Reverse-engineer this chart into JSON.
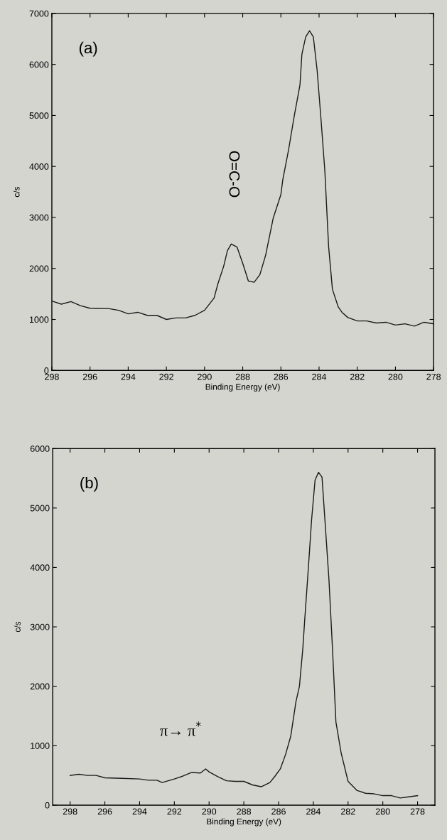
{
  "chart_data": [
    {
      "type": "line",
      "xlabel": "Binding Energy (eV)",
      "ylabel": "c/s",
      "xlim": [
        298,
        278
      ],
      "ylim": [
        0,
        7000
      ],
      "xticks": [
        298,
        296,
        294,
        292,
        290,
        288,
        286,
        284,
        282,
        280,
        278
      ],
      "yticks": [
        0,
        1000,
        2000,
        3000,
        4000,
        5000,
        6000,
        7000
      ],
      "annotations": [
        "(a)",
        "O=C-O"
      ],
      "series": [
        {
          "color": "#1a1a1a",
          "x": [
            298,
            297.5,
            297,
            296.5,
            296,
            295,
            294.5,
            294,
            293.5,
            293,
            292.5,
            292,
            291.5,
            291,
            290.5,
            290,
            289.5,
            289.3,
            289,
            288.8,
            288.6,
            288.3,
            288,
            287.7,
            287.4,
            287.1,
            286.8,
            286.4,
            286,
            285.9,
            285.6,
            285.3,
            285,
            284.9,
            284.7,
            284.5,
            284.3,
            284.1,
            283.9,
            283.7,
            283.5,
            283.3,
            283,
            282.8,
            282.5,
            282,
            281.5,
            281,
            280.5,
            280,
            279.5,
            279,
            278.5,
            278
          ],
          "values": [
            1360,
            1300,
            1350,
            1270,
            1220,
            1210,
            1180,
            1110,
            1140,
            1080,
            1080,
            1000,
            1030,
            1030,
            1080,
            1180,
            1420,
            1700,
            2040,
            2350,
            2480,
            2420,
            2100,
            1750,
            1730,
            1880,
            2260,
            2990,
            3450,
            3740,
            4320,
            4990,
            5600,
            6200,
            6540,
            6660,
            6540,
            5880,
            4930,
            3930,
            2430,
            1590,
            1250,
            1140,
            1040,
            970,
            970,
            930,
            945,
            890,
            915,
            870,
            945,
            915
          ]
        }
      ]
    },
    {
      "type": "line",
      "xlabel": "Binding Energy (eV)",
      "ylabel": "c/s",
      "xlim": [
        299,
        277
      ],
      "ylim": [
        0,
        6000
      ],
      "xticks": [
        298,
        296,
        294,
        292,
        290,
        288,
        286,
        284,
        282,
        280,
        278
      ],
      "yticks": [
        0,
        1000,
        2000,
        3000,
        4000,
        5000,
        6000
      ],
      "annotations": [
        "(b)",
        "π→ π$^{*}$"
      ],
      "series": [
        {
          "color": "#1a1a1a",
          "x": [
            298,
            297.5,
            297,
            296.5,
            296,
            295,
            294,
            293.5,
            293,
            292.7,
            292,
            291.5,
            291,
            290.5,
            290.2,
            290,
            289.5,
            289,
            288.5,
            288,
            287.5,
            287,
            286.5,
            286.2,
            285.9,
            285.6,
            285.3,
            285,
            284.8,
            284.6,
            284.5,
            284.3,
            284.1,
            283.9,
            283.7,
            283.5,
            283.3,
            283.1,
            282.9,
            282.7,
            282.4,
            282,
            281.5,
            281,
            280.5,
            280,
            279.5,
            279,
            278.5,
            278
          ],
          "values": [
            500,
            520,
            500,
            500,
            460,
            450,
            440,
            420,
            420,
            380,
            440,
            490,
            550,
            540,
            610,
            560,
            480,
            410,
            400,
            400,
            340,
            310,
            380,
            490,
            610,
            850,
            1160,
            1740,
            2000,
            2650,
            3100,
            3930,
            4800,
            5470,
            5600,
            5520,
            4660,
            3790,
            2650,
            1400,
            880,
            400,
            250,
            200,
            190,
            160,
            160,
            120,
            140,
            160
          ]
        }
      ]
    }
  ]
}
